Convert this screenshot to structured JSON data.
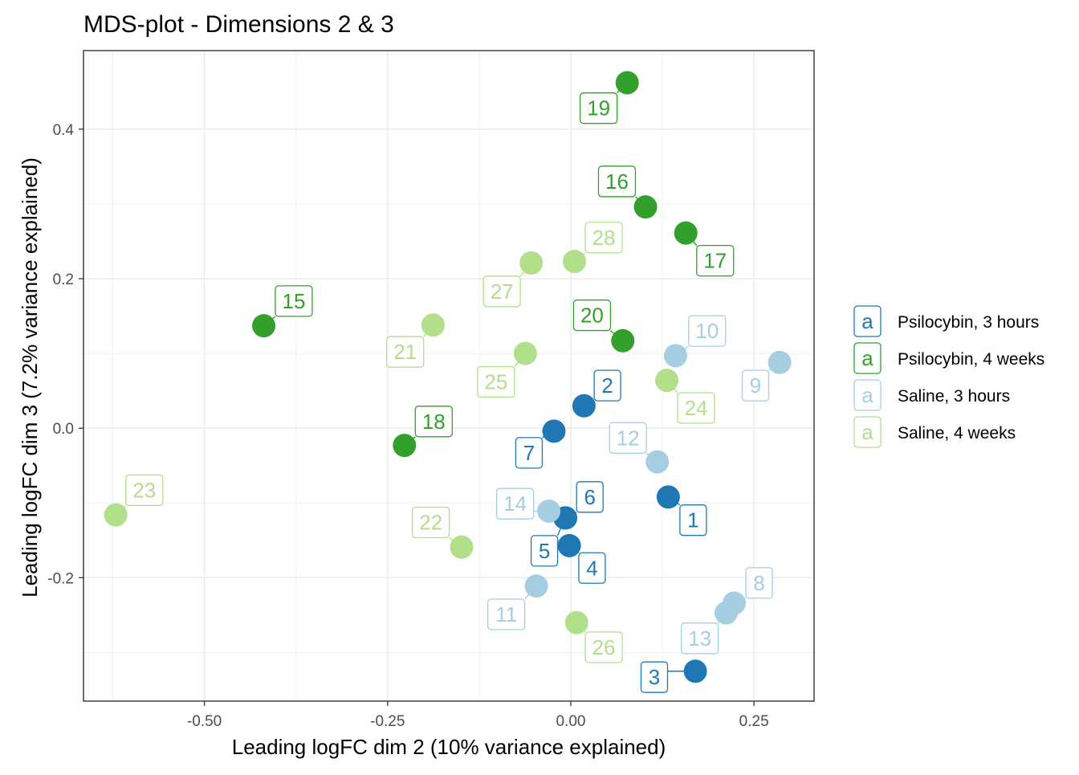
{
  "chart_data": {
    "type": "scatter",
    "title": "MDS-plot - Dimensions 2 & 3",
    "xlabel": "Leading logFC dim 2 (10% variance explained)",
    "ylabel": "Leading logFC dim 3 (7.2% variance explained)",
    "xlim": [
      -0.665,
      0.332
    ],
    "ylim": [
      -0.365,
      0.505
    ],
    "x_ticks": [
      -0.5,
      -0.25,
      0.0,
      0.25
    ],
    "x_tick_labels": [
      "-0.50",
      "-0.25",
      "0.00",
      "0.25"
    ],
    "y_ticks": [
      -0.2,
      0.0,
      0.2,
      0.4
    ],
    "y_tick_labels": [
      "-0.2",
      "0.0",
      "0.2",
      "0.4"
    ],
    "grid": true,
    "legend_position": "right",
    "legend_key_glyph": "a",
    "series": [
      {
        "name": "Psilocybin, 3 hours",
        "color": "#1f78b4",
        "points": [
          {
            "label": "1",
            "x": 0.133,
            "y": -0.092,
            "lx": 0.167,
            "ly": -0.123
          },
          {
            "label": "2",
            "x": 0.018,
            "y": 0.03,
            "lx": 0.05,
            "ly": 0.057
          },
          {
            "label": "3",
            "x": 0.17,
            "y": -0.325,
            "lx": 0.114,
            "ly": -0.333
          },
          {
            "label": "4",
            "x": -0.002,
            "y": -0.157,
            "lx": 0.029,
            "ly": -0.187
          },
          {
            "label": "5",
            "x": -0.008,
            "y": -0.12,
            "lx": -0.036,
            "ly": -0.164
          },
          {
            "label": "6",
            "x": -0.007,
            "y": -0.12,
            "lx": 0.026,
            "ly": -0.092
          },
          {
            "label": "7",
            "x": -0.023,
            "y": -0.004,
            "lx": -0.057,
            "ly": -0.033
          }
        ]
      },
      {
        "name": "Psilocybin, 4 weeks",
        "color": "#33a02c",
        "points": [
          {
            "label": "15",
            "x": -0.419,
            "y": 0.137,
            "lx": -0.378,
            "ly": 0.17
          },
          {
            "label": "16",
            "x": 0.102,
            "y": 0.296,
            "lx": 0.063,
            "ly": 0.33
          },
          {
            "label": "17",
            "x": 0.157,
            "y": 0.261,
            "lx": 0.197,
            "ly": 0.224
          },
          {
            "label": "18",
            "x": -0.227,
            "y": -0.023,
            "lx": -0.187,
            "ly": 0.009
          },
          {
            "label": "19",
            "x": 0.077,
            "y": 0.462,
            "lx": 0.038,
            "ly": 0.428
          },
          {
            "label": "20",
            "x": 0.071,
            "y": 0.117,
            "lx": 0.029,
            "ly": 0.151
          }
        ]
      },
      {
        "name": "Saline, 3 hours",
        "color": "#a6cee3",
        "points": [
          {
            "label": "8",
            "x": 0.223,
            "y": -0.234,
            "lx": 0.257,
            "ly": -0.207
          },
          {
            "label": "9",
            "x": 0.285,
            "y": 0.088,
            "lx": 0.252,
            "ly": 0.057
          },
          {
            "label": "10",
            "x": 0.143,
            "y": 0.097,
            "lx": 0.186,
            "ly": 0.13
          },
          {
            "label": "11",
            "x": -0.047,
            "y": -0.211,
            "lx": -0.088,
            "ly": -0.249
          },
          {
            "label": "12",
            "x": 0.118,
            "y": -0.045,
            "lx": 0.078,
            "ly": -0.013
          },
          {
            "label": "13",
            "x": 0.212,
            "y": -0.247,
            "lx": 0.176,
            "ly": -0.281
          },
          {
            "label": "14",
            "x": -0.03,
            "y": -0.111,
            "lx": -0.076,
            "ly": -0.101
          }
        ]
      },
      {
        "name": "Saline, 4 weeks",
        "color": "#b2df8a",
        "points": [
          {
            "label": "21",
            "x": -0.188,
            "y": 0.138,
            "lx": -0.226,
            "ly": 0.102
          },
          {
            "label": "22",
            "x": -0.149,
            "y": -0.159,
            "lx": -0.191,
            "ly": -0.126
          },
          {
            "label": "23",
            "x": -0.621,
            "y": -0.116,
            "lx": -0.582,
            "ly": -0.083
          },
          {
            "label": "24",
            "x": 0.131,
            "y": 0.064,
            "lx": 0.171,
            "ly": 0.027
          },
          {
            "label": "25",
            "x": -0.062,
            "y": 0.1,
            "lx": -0.102,
            "ly": 0.062
          },
          {
            "label": "26",
            "x": 0.008,
            "y": -0.26,
            "lx": 0.045,
            "ly": -0.293
          },
          {
            "label": "27",
            "x": -0.054,
            "y": 0.221,
            "lx": -0.094,
            "ly": 0.183
          },
          {
            "label": "28",
            "x": 0.005,
            "y": 0.223,
            "lx": 0.045,
            "ly": 0.255
          }
        ]
      }
    ]
  }
}
